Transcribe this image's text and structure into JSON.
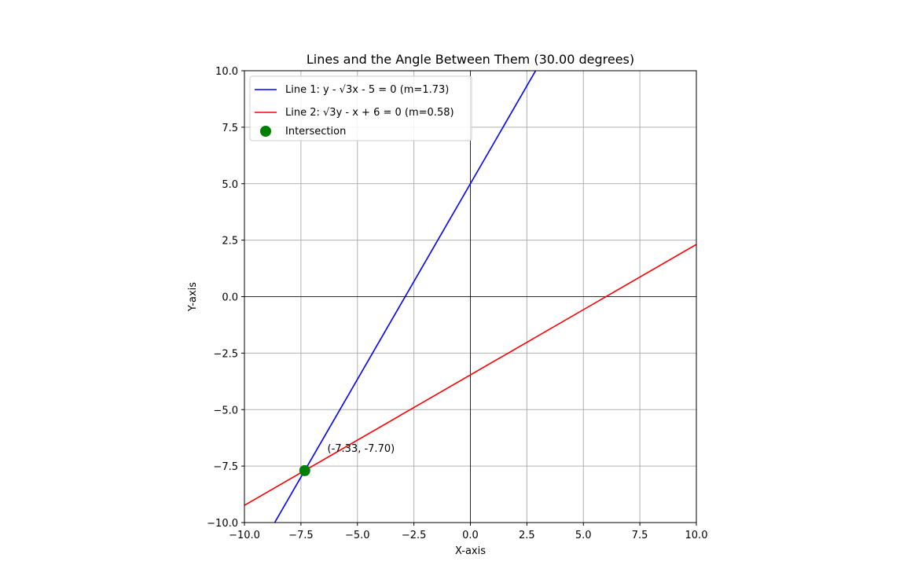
{
  "chart_data": {
    "type": "line",
    "title": "Lines and the Angle Between Them (30.00 degrees)",
    "xlabel": "X-axis",
    "ylabel": "Y-axis",
    "xlim": [
      -10,
      10
    ],
    "ylim": [
      -10,
      10
    ],
    "grid": true,
    "legend_position": "top-left",
    "x_ticks": [
      -10,
      -7.5,
      -5,
      -2.5,
      0,
      2.5,
      5,
      7.5,
      10
    ],
    "y_ticks": [
      -10,
      -7.5,
      -5,
      -2.5,
      0,
      2.5,
      5,
      7.5,
      10
    ],
    "x_tick_labels": [
      "−10.0",
      "−7.5",
      "−5.0",
      "−2.5",
      "0.0",
      "2.5",
      "5.0",
      "7.5",
      "10.0"
    ],
    "y_tick_labels": [
      "−10.0",
      "−7.5",
      "−5.0",
      "−2.5",
      "0.0",
      "2.5",
      "5.0",
      "7.5",
      "10.0"
    ],
    "series": [
      {
        "name": "Line 1: y - √3x - 5 = 0 (m=1.73)",
        "legend_parts": [
          "Line 1: y - ",
          "√3",
          "x - 5 = 0 (m=1.73)"
        ],
        "color": "#0000ff",
        "slope": 1.7320508,
        "intercept": 5
      },
      {
        "name": "Line 2: √3y - x + 6 = 0 (m=0.58)",
        "legend_parts": [
          "Line 2: ",
          "√3",
          "y - x + 6 = 0 (m=0.58)"
        ],
        "color": "#ff0000",
        "slope": 0.5773503,
        "intercept": -3.4641016
      }
    ],
    "intersection": {
      "name": "Intersection",
      "x": -7.33,
      "y": -7.7,
      "color": "#008000",
      "label": "(-7.33, -7.70)"
    }
  }
}
